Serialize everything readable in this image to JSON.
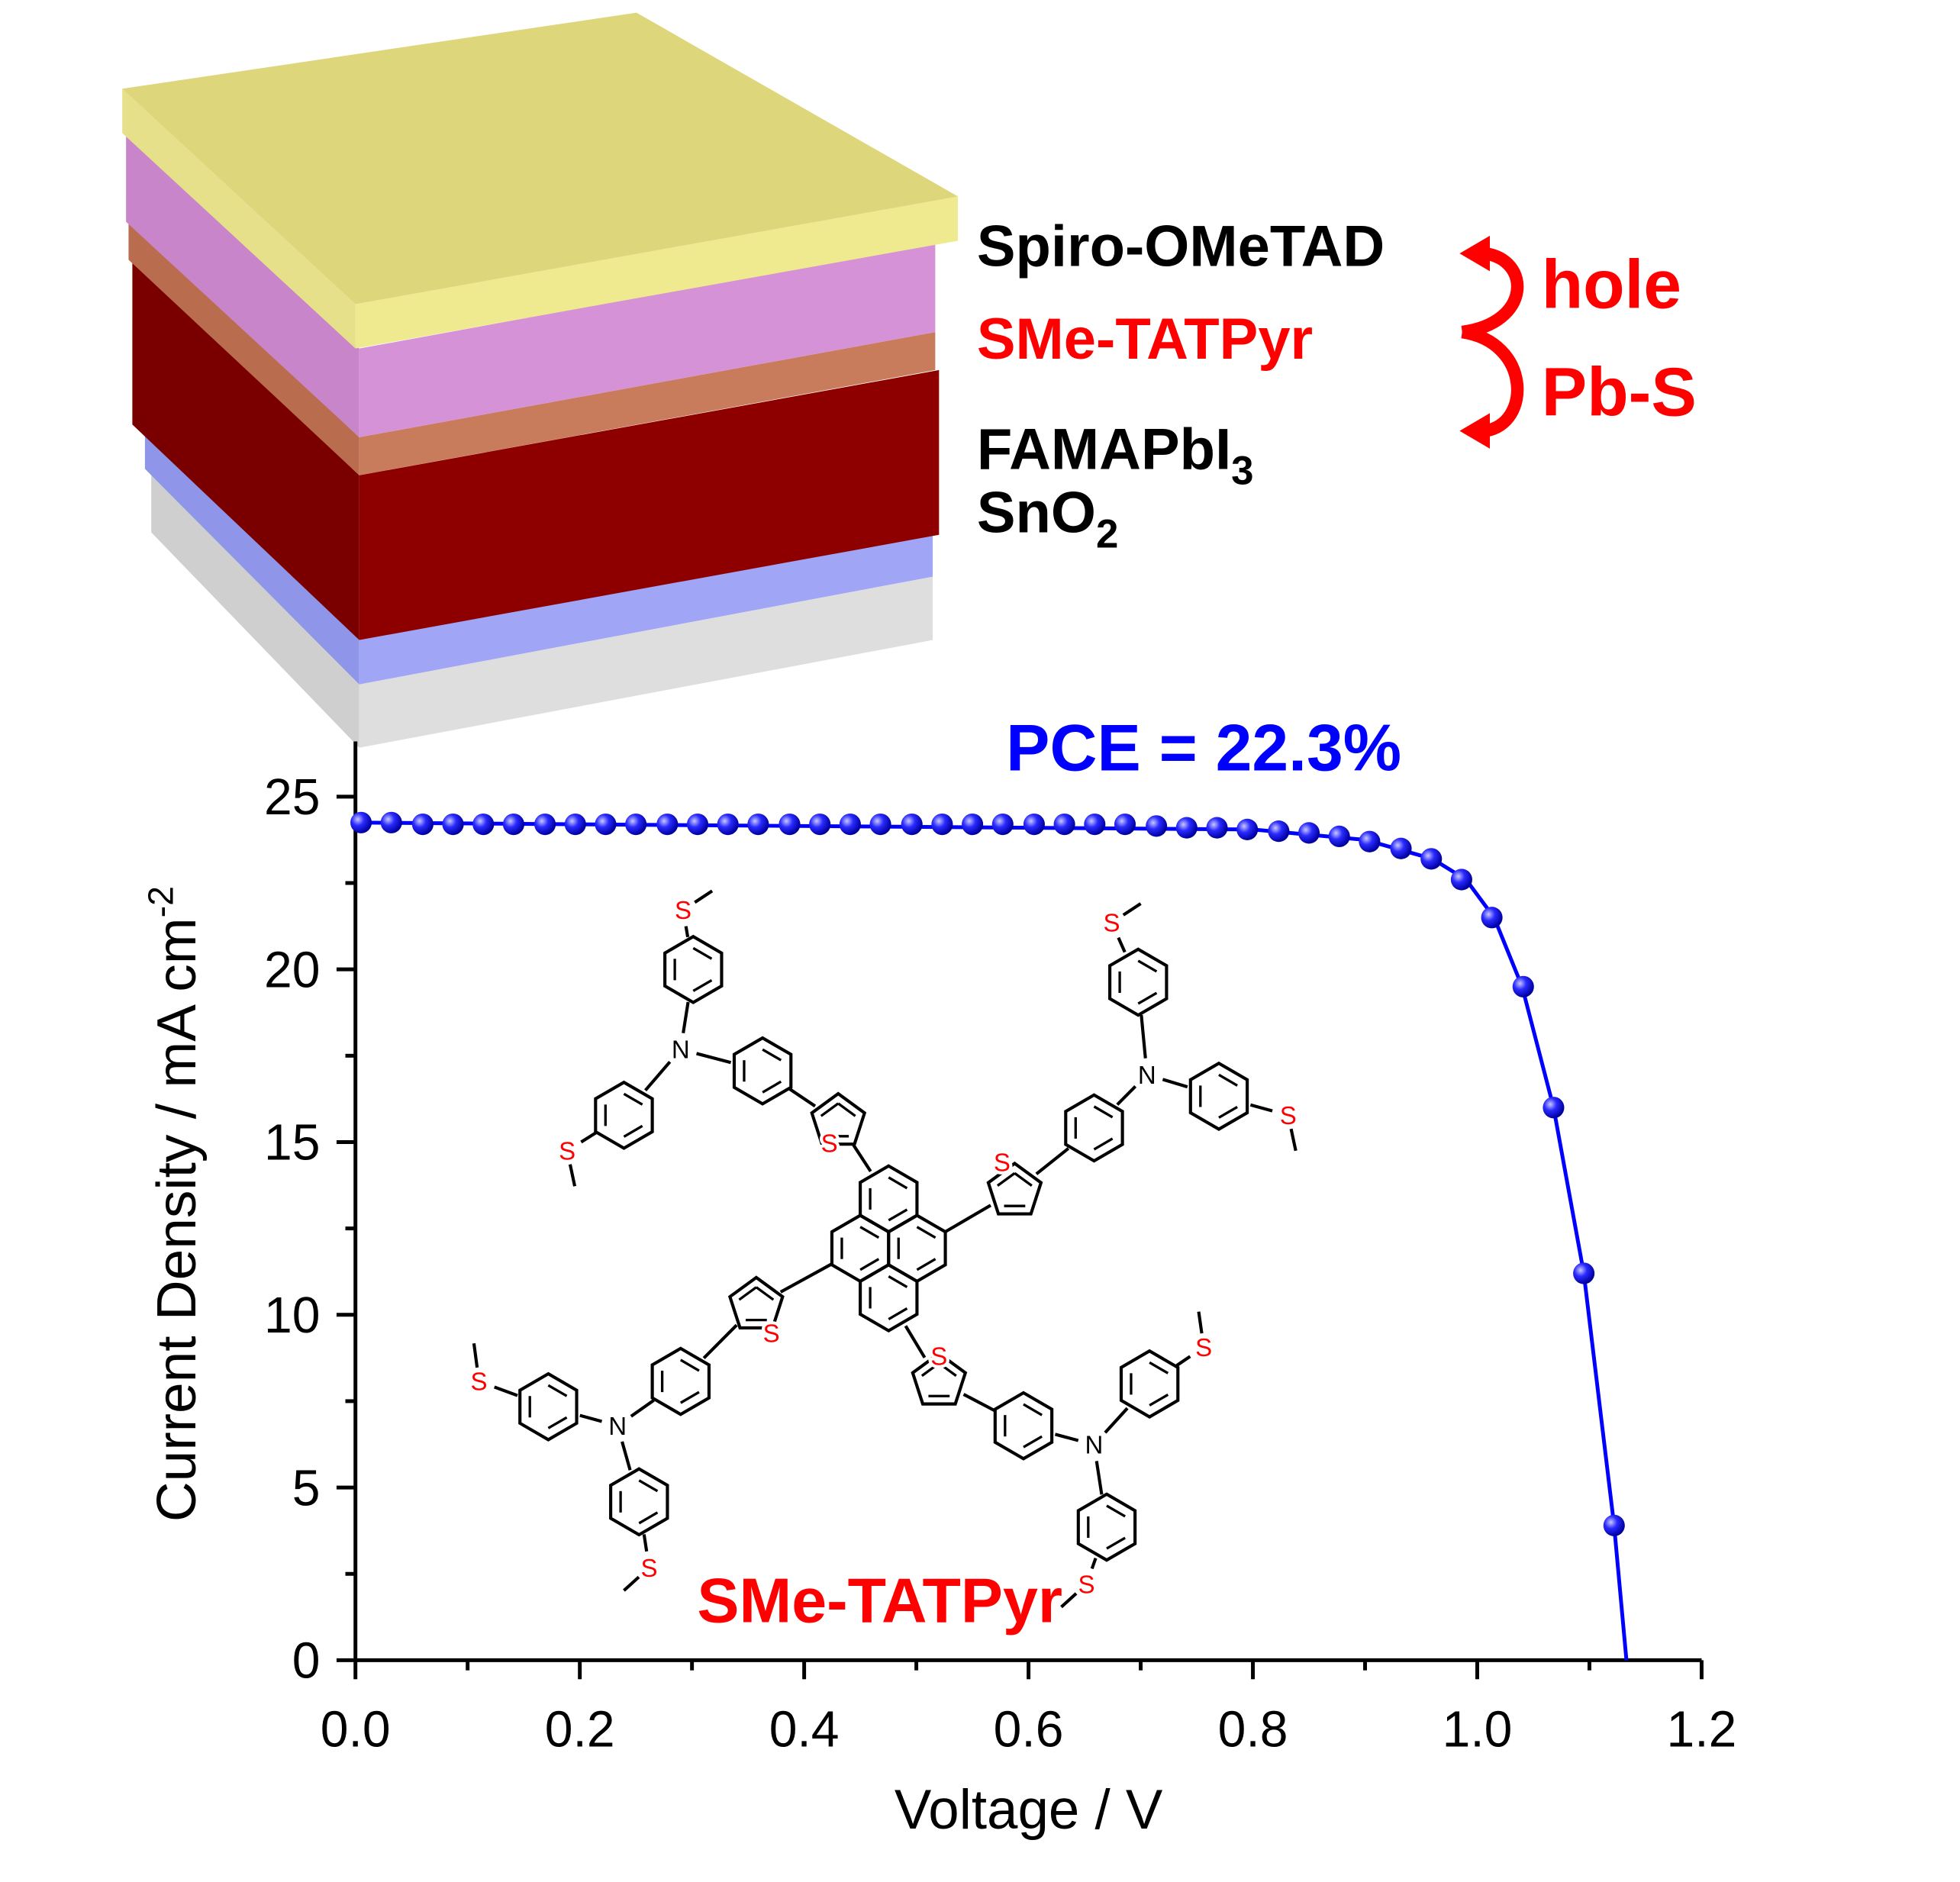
{
  "device": {
    "layers": [
      {
        "text": "Spiro-OMeTAD"
      },
      {
        "text": "SMe-TATPyr"
      },
      {
        "text": "FAMAPbI",
        "sub": "3"
      },
      {
        "text": "SnO",
        "sub": "2"
      }
    ],
    "arrows": [
      "hole",
      "Pb-S"
    ]
  },
  "chart_data": {
    "type": "line",
    "annotation": "PCE = 22.3%",
    "xlabel": "Voltage / V",
    "ylabel": "Current Density / mA cm",
    "ylabel_sup": "-2",
    "xlim": [
      0,
      1.2
    ],
    "ylim": [
      0,
      26.6
    ],
    "xticks": [
      {
        "value": 0,
        "label": "0.0"
      },
      0.2,
      0.4,
      0.6,
      0.8,
      {
        "value": 1,
        "label": "1.0"
      },
      1.2
    ],
    "xminorticks": [
      0.1,
      0.3,
      0.5,
      0.7,
      0.9,
      1.1
    ],
    "yticks": [
      0,
      5,
      10,
      15,
      20,
      25
    ],
    "yminorticks": [
      2.5,
      7.5,
      12.5,
      17.5,
      22.5
    ],
    "series": [
      {
        "color": "#0000ff",
        "style": "markers",
        "x": [
          0.005,
          0.032,
          0.06,
          0.087,
          0.114,
          0.141,
          0.169,
          0.196,
          0.223,
          0.25,
          0.278,
          0.305,
          0.332,
          0.359,
          0.387,
          0.414,
          0.441,
          0.468,
          0.496,
          0.523,
          0.55,
          0.577,
          0.605,
          0.632,
          0.659,
          0.686,
          0.714,
          0.741,
          0.768,
          0.795,
          0.823,
          0.85,
          0.877,
          0.904,
          0.932,
          0.959,
          0.986,
          1.013,
          1.041,
          1.068,
          1.095,
          1.122
        ],
        "values": [
          24.25,
          24.25,
          24.2,
          24.2,
          24.2,
          24.2,
          24.2,
          24.2,
          24.2,
          24.2,
          24.2,
          24.2,
          24.2,
          24.2,
          24.2,
          24.2,
          24.2,
          24.2,
          24.2,
          24.2,
          24.2,
          24.2,
          24.2,
          24.2,
          24.2,
          24.2,
          24.15,
          24.1,
          24.1,
          24.05,
          24.0,
          23.95,
          23.85,
          23.7,
          23.5,
          23.2,
          22.6,
          21.5,
          19.5,
          16.0,
          11.2,
          3.9
        ]
      },
      {
        "color": "#0000ff",
        "style": "line",
        "x": [
          0,
          0.8,
          0.9,
          0.96,
          0.99,
          1.015,
          1.04,
          1.068,
          1.095,
          1.122,
          1.133
        ],
        "values": [
          24.25,
          24.05,
          23.75,
          23.2,
          22.6,
          21.5,
          19.5,
          16.0,
          11.2,
          3.9,
          0
        ]
      }
    ]
  },
  "molecule": {
    "name": "SMe-TATPyr",
    "atoms": [
      "N",
      "N",
      "N",
      "N",
      "S",
      "S",
      "S",
      "S",
      "S",
      "S",
      "S",
      "S",
      "S",
      "S",
      "S",
      "S"
    ]
  }
}
